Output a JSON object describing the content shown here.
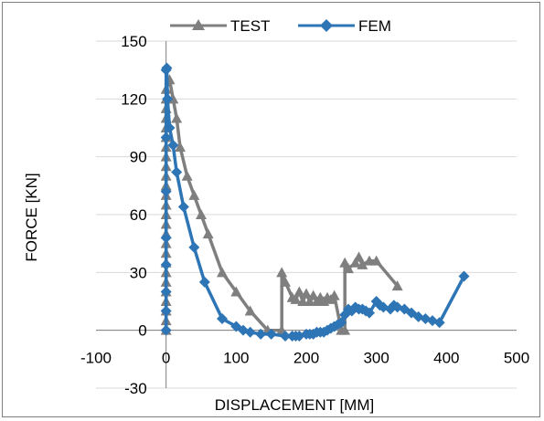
{
  "chart_data": {
    "type": "scatter",
    "xlabel": "DISPLACEMENT [MM]",
    "ylabel": "FORCE  [KN]",
    "xlim": [
      -100,
      500
    ],
    "ylim": [
      -30,
      150
    ],
    "xticks": [
      -100,
      0,
      100,
      200,
      300,
      400,
      500
    ],
    "yticks": [
      -30,
      0,
      30,
      60,
      90,
      120,
      150
    ],
    "grid": "horizontal",
    "legend": "top",
    "series": [
      {
        "name": "TEST",
        "color": "#7f7f7f",
        "marker": "triangle",
        "x": [
          0,
          0,
          0,
          0,
          0,
          0,
          0,
          0,
          0,
          0,
          0,
          0,
          0,
          0,
          0,
          0,
          0,
          0,
          0,
          0,
          0,
          0,
          0,
          0,
          0,
          0,
          5,
          10,
          15,
          20,
          30,
          40,
          50,
          60,
          80,
          100,
          120,
          145,
          165,
          165,
          170,
          180,
          185,
          190,
          195,
          200,
          205,
          210,
          215,
          220,
          225,
          230,
          235,
          240,
          250,
          255,
          255,
          260,
          270,
          275,
          280,
          290,
          300,
          330
        ],
        "y": [
          0,
          5,
          10,
          15,
          20,
          25,
          30,
          35,
          40,
          45,
          50,
          55,
          60,
          65,
          70,
          75,
          80,
          85,
          90,
          95,
          100,
          105,
          110,
          115,
          120,
          125,
          130,
          120,
          110,
          95,
          80,
          70,
          60,
          50,
          30,
          20,
          10,
          0,
          0,
          30,
          25,
          17,
          16,
          20,
          15,
          19,
          15,
          18,
          15,
          17,
          15,
          17,
          16,
          18,
          0,
          0,
          35,
          32,
          35,
          38,
          34,
          36,
          36,
          23
        ]
      },
      {
        "name": "FEM",
        "color": "#2e75b6",
        "marker": "diamond",
        "x": [
          0,
          0,
          0,
          0,
          0,
          0,
          0,
          0,
          1,
          2,
          5,
          10,
          15,
          25,
          40,
          55,
          80,
          100,
          110,
          120,
          135,
          150,
          170,
          180,
          185,
          190,
          200,
          205,
          210,
          215,
          220,
          225,
          230,
          235,
          240,
          245,
          250,
          255,
          260,
          265,
          270,
          275,
          280,
          285,
          290,
          300,
          305,
          310,
          320,
          325,
          330,
          340,
          350,
          360,
          370,
          380,
          390,
          425
        ],
        "y": [
          0,
          10,
          20,
          34,
          48,
          72,
          100,
          135,
          136,
          120,
          105,
          96,
          82,
          64,
          43,
          25,
          6,
          2,
          0,
          -1,
          -2,
          -2,
          -3,
          -3,
          -3,
          -3,
          -2,
          -2,
          -2,
          -1,
          -1,
          -1,
          0,
          1,
          2,
          3,
          4,
          8,
          11,
          10,
          12,
          11,
          11,
          10,
          9,
          15,
          13,
          12,
          11,
          13,
          12,
          11,
          9,
          7,
          6,
          5,
          4,
          28
        ]
      }
    ]
  }
}
